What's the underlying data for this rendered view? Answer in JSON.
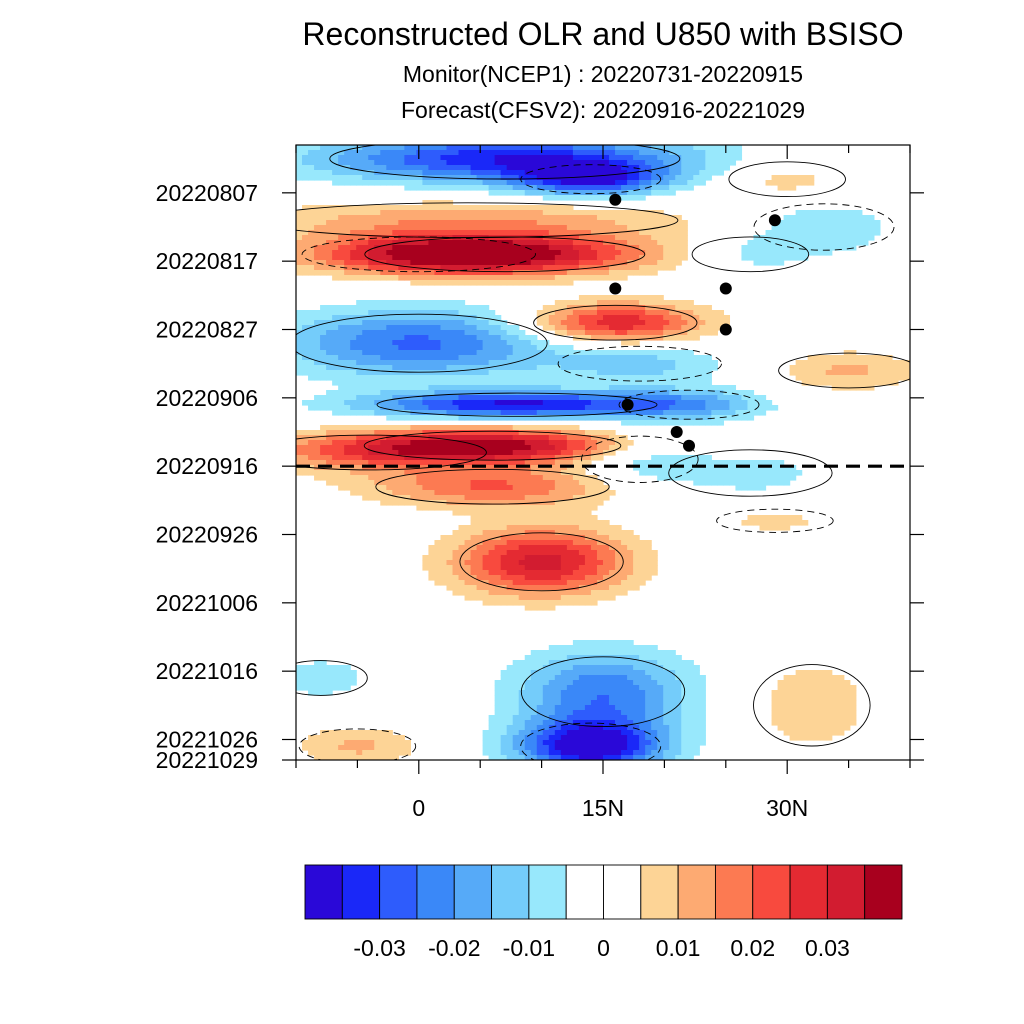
{
  "chart_data": {
    "type": "heatmap",
    "title": "Reconstructed OLR and U850 with BSISO",
    "subtitle_monitor": "Monitor(NCEP1)  :  20220731-20220915",
    "subtitle_forecast": "Forecast(CFSV2):  20220916-20221029",
    "y_tick_labels": [
      "20220807",
      "20220817",
      "20220827",
      "20220906",
      "20220916",
      "20220926",
      "20221006",
      "20221016",
      "20221026",
      "20221029"
    ],
    "y_tick_days": [
      7,
      17,
      27,
      37,
      47,
      57,
      67,
      77,
      87,
      90
    ],
    "y_range_days": [
      0,
      90
    ],
    "x_tick_labels": [
      "0",
      "15N",
      "30N"
    ],
    "x_tick_values": [
      0,
      15,
      30
    ],
    "x_minor_ticks": [
      -10,
      -5,
      5,
      10,
      20,
      25,
      35,
      40
    ],
    "x_range": [
      -10,
      40
    ],
    "forecast_split_day": 47,
    "colorbar": {
      "levels": [
        -0.035,
        -0.03,
        -0.025,
        -0.02,
        -0.015,
        -0.01,
        -0.005,
        0,
        0.005,
        0.01,
        0.015,
        0.02,
        0.025,
        0.03,
        0.035
      ],
      "tick_labels": [
        "-0.03",
        "-0.02",
        "-0.01",
        "0",
        "0.01",
        "0.02",
        "0.03"
      ],
      "tick_values": [
        -0.03,
        -0.02,
        -0.01,
        0,
        0.01,
        0.02,
        0.03
      ],
      "colors": [
        "#2a08d8",
        "#1a28f8",
        "#2e5cfc",
        "#3a88f8",
        "#56aaf8",
        "#74ccfa",
        "#98e8fc",
        "#ffffff",
        "#ffffff",
        "#fdd496",
        "#fdaa72",
        "#fc7a52",
        "#f84a3e",
        "#e42a32",
        "#d21c30",
        "#a8001e"
      ]
    },
    "anomaly_blobs": [
      {
        "lat": 7,
        "day": 2,
        "rlat": 15,
        "rday": 3.5,
        "v": -0.034
      },
      {
        "lat": 14,
        "day": 5,
        "rlat": 6,
        "rday": 2.5,
        "v": -0.03
      },
      {
        "lat": 30,
        "day": 5,
        "rlat": 5,
        "rday": 3,
        "v": 0.008
      },
      {
        "lat": 4,
        "day": 11,
        "rlat": 18,
        "rday": 3,
        "v": 0.013
      },
      {
        "lat": 33,
        "day": 12,
        "rlat": 6,
        "rday": 4,
        "v": -0.01
      },
      {
        "lat": 27,
        "day": 16,
        "rlat": 5,
        "rday": 3,
        "v": -0.007
      },
      {
        "lat": 7,
        "day": 16,
        "rlat": 12,
        "rday": 3,
        "v": 0.034
      },
      {
        "lat": 0,
        "day": 16,
        "rlat": 10,
        "rday": 3,
        "v": 0.018
      },
      {
        "lat": 16,
        "day": 26,
        "rlat": 7,
        "rday": 3,
        "v": 0.03
      },
      {
        "lat": 0,
        "day": 29,
        "rlat": 11,
        "rday": 5,
        "v": -0.026
      },
      {
        "lat": 18,
        "day": 32,
        "rlat": 7,
        "rday": 3,
        "v": -0.012
      },
      {
        "lat": 35,
        "day": 33,
        "rlat": 6,
        "rday": 3,
        "v": 0.011
      },
      {
        "lat": 8,
        "day": 38,
        "rlat": 12,
        "rday": 2,
        "v": -0.036
      },
      {
        "lat": 22,
        "day": 38,
        "rlat": 6,
        "rday": 2.5,
        "v": -0.014
      },
      {
        "lat": 6,
        "day": 44,
        "rlat": 11,
        "rday": 2.5,
        "v": 0.036
      },
      {
        "lat": -4,
        "day": 45,
        "rlat": 10,
        "rday": 3,
        "v": 0.016
      },
      {
        "lat": 18,
        "day": 46,
        "rlat": 5,
        "rday": 4,
        "v": -0.01
      },
      {
        "lat": 27,
        "day": 48,
        "rlat": 7,
        "rday": 4,
        "v": -0.007
      },
      {
        "lat": 6,
        "day": 50,
        "rlat": 10,
        "rday": 3,
        "v": 0.02
      },
      {
        "lat": 29,
        "day": 55,
        "rlat": 5,
        "rday": 2,
        "v": 0.007
      },
      {
        "lat": 10,
        "day": 61,
        "rlat": 7,
        "rday": 5,
        "v": 0.032
      },
      {
        "lat": 15,
        "day": 80,
        "rlat": 7,
        "rday": 6,
        "v": -0.024
      },
      {
        "lat": 14,
        "day": 88,
        "rlat": 6,
        "rday": 4,
        "v": -0.04
      },
      {
        "lat": -8,
        "day": 78,
        "rlat": 4,
        "rday": 3,
        "v": -0.009
      },
      {
        "lat": 32,
        "day": 82,
        "rlat": 5,
        "rday": 7,
        "v": 0.009
      },
      {
        "lat": -5,
        "day": 88,
        "rlat": 5,
        "rday": 3,
        "v": 0.011
      }
    ],
    "bsiso_points": [
      {
        "lat": 16,
        "day": 8
      },
      {
        "lat": 29,
        "day": 11
      },
      {
        "lat": 16,
        "day": 21
      },
      {
        "lat": 25,
        "day": 21
      },
      {
        "lat": 25,
        "day": 27
      },
      {
        "lat": 17,
        "day": 38
      },
      {
        "lat": 21,
        "day": 42
      },
      {
        "lat": 22,
        "day": 44
      }
    ]
  }
}
